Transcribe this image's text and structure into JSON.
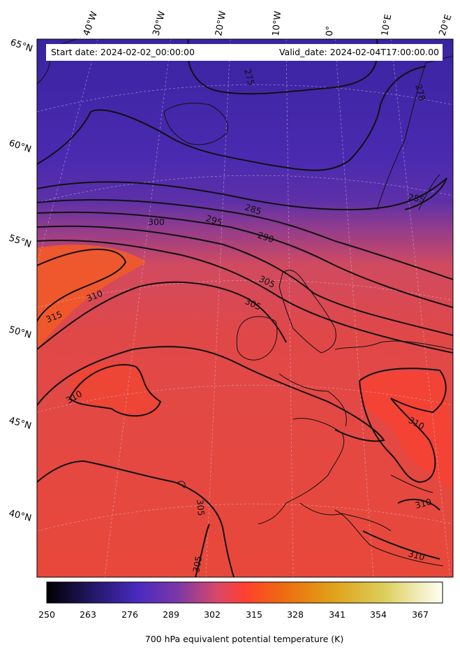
{
  "header": {
    "start_date": "Start date: 2024-02-02_00:00:00",
    "valid_date": "Valid_date: 2024-02-04T17:00:00.00"
  },
  "graticule": {
    "lon_labels": [
      "40°W",
      "30°W",
      "20°W",
      "10°W",
      "0°",
      "10°E",
      "20°E"
    ],
    "lat_labels": [
      "65°N",
      "60°N",
      "55°N",
      "50°N",
      "45°N",
      "40°N"
    ]
  },
  "contours": {
    "labels": [
      "275",
      "278",
      "285",
      "295",
      "300",
      "290",
      "285",
      "305",
      "310",
      "315",
      "305",
      "310",
      "310",
      "305",
      "305",
      "310",
      "310"
    ]
  },
  "colorbar": {
    "ticks": [
      "250",
      "263",
      "276",
      "289",
      "302",
      "315",
      "328",
      "341",
      "354",
      "367"
    ],
    "label": "700 hPa equivalent potential temperature (K)",
    "colors": [
      "#000000",
      "#2a1a70",
      "#4a2ac0",
      "#6a38b8",
      "#c04a80",
      "#ff4433",
      "#ee7010",
      "#e0a018",
      "#ddd060",
      "#fffff2"
    ]
  },
  "colors": {
    "cold": "#4a2aa8",
    "warm": "#ef4a3a",
    "contour": "#111111"
  }
}
